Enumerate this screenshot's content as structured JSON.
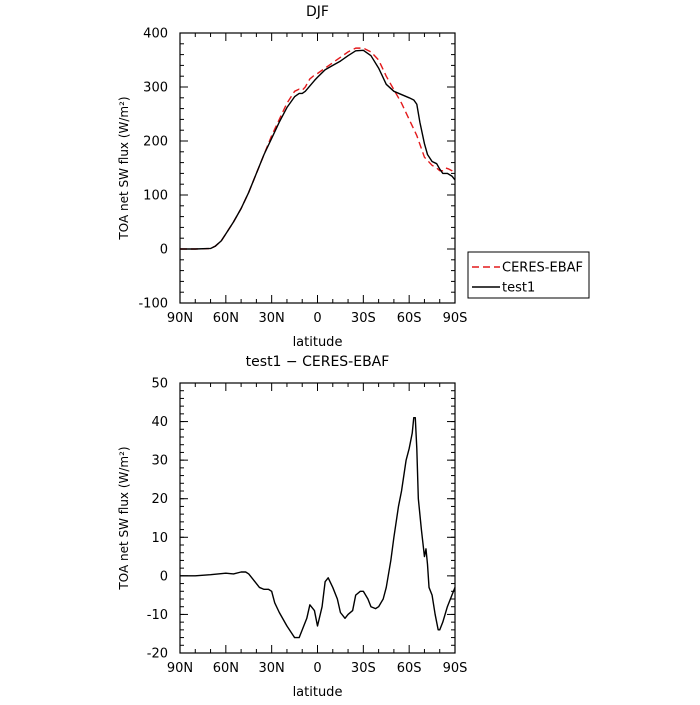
{
  "chart_data": [
    {
      "type": "line",
      "title": "DJF",
      "xlabel": "latitude",
      "ylabel": "TOA net SW flux (W/m²)",
      "xlim": [
        90,
        -90
      ],
      "ylim": [
        -100,
        400
      ],
      "x_ticks": [
        "90N",
        "60N",
        "30N",
        "0",
        "30S",
        "60S",
        "90S"
      ],
      "y_ticks": [
        "-100",
        "0",
        "100",
        "200",
        "300",
        "400"
      ],
      "legend_position": "right",
      "grid": false,
      "series": [
        {
          "name": "CERES-EBAF",
          "color": "#e31a1c",
          "dash": "dashed",
          "x": [
            90,
            80,
            70,
            67,
            63,
            60,
            55,
            50,
            45,
            40,
            35,
            30,
            25,
            20,
            15,
            12,
            10,
            8,
            5,
            2,
            0,
            -5,
            -10,
            -15,
            -20,
            -25,
            -30,
            -35,
            -40,
            -45,
            -50,
            -55,
            -60,
            -65,
            -70,
            -75,
            -78,
            -80,
            -82,
            -84,
            -86,
            -88,
            -90
          ],
          "values": [
            0,
            0,
            1,
            5,
            15,
            28,
            50,
            75,
            105,
            140,
            175,
            210,
            240,
            270,
            292,
            296,
            294,
            300,
            315,
            322,
            325,
            335,
            345,
            355,
            365,
            372,
            372,
            365,
            350,
            320,
            295,
            270,
            240,
            210,
            170,
            155,
            150,
            145,
            145,
            150,
            148,
            145,
            140
          ]
        },
        {
          "name": "test1",
          "color": "#000000",
          "dash": "solid",
          "x": [
            90,
            80,
            70,
            67,
            63,
            60,
            55,
            50,
            45,
            40,
            35,
            30,
            25,
            20,
            15,
            12,
            10,
            8,
            5,
            2,
            0,
            -5,
            -10,
            -15,
            -20,
            -25,
            -30,
            -35,
            -40,
            -45,
            -50,
            -55,
            -60,
            -63,
            -65,
            -67,
            -70,
            -72,
            -75,
            -78,
            -80,
            -82,
            -85,
            -88,
            -90
          ],
          "values": [
            0,
            0,
            1,
            5,
            15,
            28,
            50,
            75,
            105,
            140,
            175,
            205,
            235,
            262,
            282,
            288,
            288,
            292,
            302,
            312,
            318,
            332,
            340,
            348,
            358,
            367,
            368,
            358,
            335,
            305,
            292,
            286,
            280,
            276,
            268,
            235,
            195,
            175,
            162,
            158,
            148,
            140,
            140,
            135,
            128
          ]
        }
      ]
    },
    {
      "type": "line",
      "title": "test1 − CERES-EBAF",
      "xlabel": "latitude",
      "ylabel": "TOA net SW flux (W/m²)",
      "xlim": [
        90,
        -90
      ],
      "ylim": [
        -20,
        50
      ],
      "x_ticks": [
        "90N",
        "60N",
        "30N",
        "0",
        "30S",
        "60S",
        "90S"
      ],
      "y_ticks": [
        "-20",
        "-10",
        "0",
        "10",
        "20",
        "30",
        "40",
        "50"
      ],
      "grid": false,
      "series": [
        {
          "name": "",
          "color": "#000000",
          "dash": "solid",
          "x": [
            90,
            80,
            70,
            65,
            60,
            55,
            50,
            47,
            45,
            42,
            40,
            38,
            35,
            32,
            30,
            28,
            25,
            20,
            15,
            12,
            10,
            7,
            5,
            2,
            0,
            -3,
            -5,
            -7,
            -10,
            -13,
            -15,
            -18,
            -20,
            -23,
            -25,
            -28,
            -30,
            -33,
            -35,
            -38,
            -40,
            -43,
            -45,
            -48,
            -50,
            -53,
            -55,
            -58,
            -60,
            -62,
            -63,
            -64,
            -65,
            -66,
            -68,
            -70,
            -71,
            -72,
            -73,
            -75,
            -77,
            -79,
            -80,
            -82,
            -85,
            -88,
            -90
          ],
          "values": [
            0,
            0,
            0.3,
            0.5,
            0.7,
            0.5,
            1,
            1,
            0.5,
            -1,
            -2,
            -3,
            -3.5,
            -3.5,
            -4,
            -7,
            -9.5,
            -13,
            -16,
            -16,
            -14,
            -11,
            -7.5,
            -9,
            -13,
            -8,
            -1.5,
            -0.5,
            -3,
            -6,
            -9.5,
            -11,
            -10,
            -9,
            -5,
            -4,
            -4,
            -6,
            -8,
            -8.5,
            -8,
            -6,
            -3,
            4,
            10,
            18,
            22,
            30,
            33,
            37,
            41,
            41,
            33,
            20,
            12,
            5,
            7,
            3,
            -3,
            -5,
            -10,
            -14,
            -14,
            -12,
            -8,
            -5,
            -3
          ]
        }
      ]
    }
  ]
}
